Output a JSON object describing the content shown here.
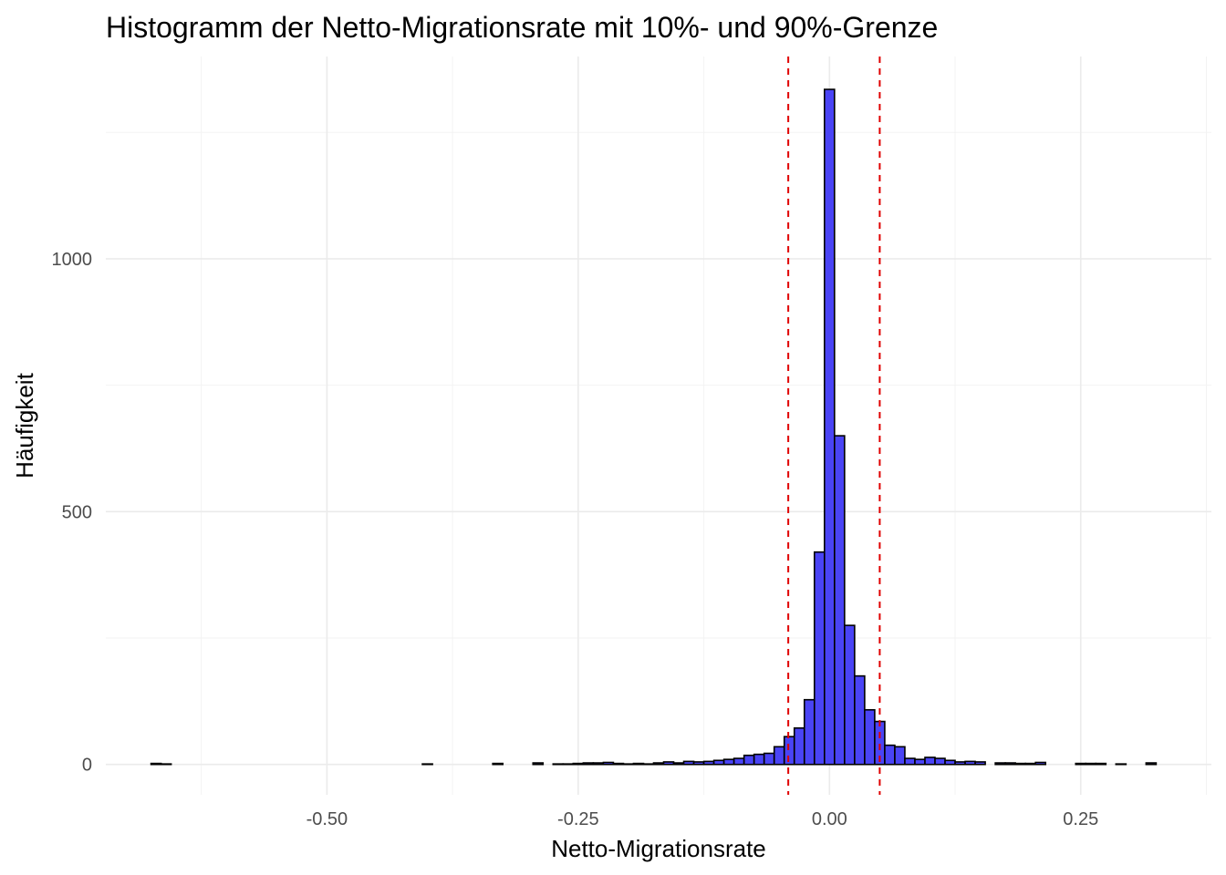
{
  "chart_data": {
    "type": "bar",
    "title": "Histogramm der Netto-Migrationsrate mit 10%- und 90%-Grenze",
    "xlabel": "Netto-Migrationsrate",
    "ylabel": "Häufigkeit",
    "xlim": [
      -0.72,
      0.38
    ],
    "ylim": [
      -60,
      1400
    ],
    "x_ticks": [
      {
        "value": -0.5,
        "label": "-0.50"
      },
      {
        "value": -0.25,
        "label": "-0.25"
      },
      {
        "value": 0.0,
        "label": "0.00"
      },
      {
        "value": 0.25,
        "label": "0.25"
      }
    ],
    "y_ticks": [
      {
        "value": 0,
        "label": "0"
      },
      {
        "value": 500,
        "label": "500"
      },
      {
        "value": 1000,
        "label": "1000"
      }
    ],
    "bin_width": 0.01,
    "bins": [
      {
        "x": -0.67,
        "count": 2
      },
      {
        "x": -0.66,
        "count": 1
      },
      {
        "x": -0.4,
        "count": 1
      },
      {
        "x": -0.33,
        "count": 2
      },
      {
        "x": -0.29,
        "count": 3
      },
      {
        "x": -0.27,
        "count": 1
      },
      {
        "x": -0.26,
        "count": 1
      },
      {
        "x": -0.25,
        "count": 2
      },
      {
        "x": -0.24,
        "count": 3
      },
      {
        "x": -0.23,
        "count": 3
      },
      {
        "x": -0.22,
        "count": 4
      },
      {
        "x": -0.21,
        "count": 2
      },
      {
        "x": -0.2,
        "count": 1
      },
      {
        "x": -0.19,
        "count": 2
      },
      {
        "x": -0.18,
        "count": 1
      },
      {
        "x": -0.17,
        "count": 3
      },
      {
        "x": -0.16,
        "count": 5
      },
      {
        "x": -0.15,
        "count": 3
      },
      {
        "x": -0.14,
        "count": 6
      },
      {
        "x": -0.13,
        "count": 5
      },
      {
        "x": -0.12,
        "count": 6
      },
      {
        "x": -0.11,
        "count": 8
      },
      {
        "x": -0.1,
        "count": 10
      },
      {
        "x": -0.09,
        "count": 12
      },
      {
        "x": -0.08,
        "count": 18
      },
      {
        "x": -0.07,
        "count": 20
      },
      {
        "x": -0.06,
        "count": 22
      },
      {
        "x": -0.05,
        "count": 35
      },
      {
        "x": -0.04,
        "count": 55
      },
      {
        "x": -0.03,
        "count": 72
      },
      {
        "x": -0.02,
        "count": 128
      },
      {
        "x": -0.01,
        "count": 420
      },
      {
        "x": 0.0,
        "count": 1335
      },
      {
        "x": 0.01,
        "count": 650
      },
      {
        "x": 0.02,
        "count": 275
      },
      {
        "x": 0.03,
        "count": 175
      },
      {
        "x": 0.04,
        "count": 108
      },
      {
        "x": 0.05,
        "count": 85
      },
      {
        "x": 0.06,
        "count": 38
      },
      {
        "x": 0.07,
        "count": 35
      },
      {
        "x": 0.08,
        "count": 12
      },
      {
        "x": 0.09,
        "count": 10
      },
      {
        "x": 0.1,
        "count": 14
      },
      {
        "x": 0.11,
        "count": 12
      },
      {
        "x": 0.12,
        "count": 8
      },
      {
        "x": 0.13,
        "count": 5
      },
      {
        "x": 0.14,
        "count": 6
      },
      {
        "x": 0.15,
        "count": 5
      },
      {
        "x": 0.17,
        "count": 3
      },
      {
        "x": 0.18,
        "count": 3
      },
      {
        "x": 0.19,
        "count": 2
      },
      {
        "x": 0.2,
        "count": 2
      },
      {
        "x": 0.21,
        "count": 4
      },
      {
        "x": 0.25,
        "count": 2
      },
      {
        "x": 0.26,
        "count": 2
      },
      {
        "x": 0.27,
        "count": 2
      },
      {
        "x": 0.29,
        "count": 1
      },
      {
        "x": 0.32,
        "count": 3
      }
    ],
    "quantile_lines": [
      {
        "value": -0.041,
        "color": "#e00000"
      },
      {
        "value": 0.05,
        "color": "#e00000"
      }
    ],
    "bar_fill": "#4a44f5",
    "bar_outline": "#000000",
    "grid": true
  }
}
